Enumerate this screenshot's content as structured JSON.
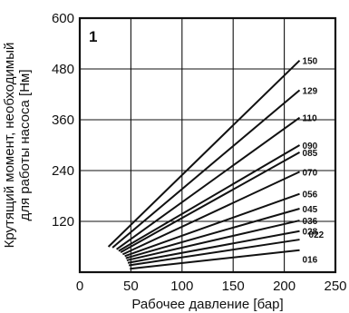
{
  "chart_data": {
    "type": "line",
    "panel_label": "1",
    "xlabel": "Рабочее давление [бар]",
    "ylabel_line1": "Крутящий момент, необходимый",
    "ylabel_line2": "для работы насоса [Нм]",
    "xlim": [
      0,
      250
    ],
    "ylim": [
      0,
      600
    ],
    "x_ticks": [
      0,
      50,
      100,
      150,
      200,
      250
    ],
    "y_ticks": [
      120,
      240,
      360,
      480,
      600
    ],
    "grid": true,
    "series": [
      {
        "name": "150",
        "x": [
          28,
          215
        ],
        "y": [
          60,
          500
        ]
      },
      {
        "name": "129",
        "x": [
          32,
          215
        ],
        "y": [
          58,
          430
        ]
      },
      {
        "name": "110",
        "x": [
          36,
          215
        ],
        "y": [
          54,
          365
        ]
      },
      {
        "name": "090",
        "x": [
          38,
          215
        ],
        "y": [
          50,
          300
        ]
      },
      {
        "name": "085",
        "x": [
          40,
          215
        ],
        "y": [
          47,
          283
        ]
      },
      {
        "name": "070",
        "x": [
          42,
          215
        ],
        "y": [
          42,
          237
        ]
      },
      {
        "name": "056",
        "x": [
          44,
          215
        ],
        "y": [
          38,
          185
        ]
      },
      {
        "name": "045",
        "x": [
          45,
          215
        ],
        "y": [
          33,
          150
        ]
      },
      {
        "name": "036",
        "x": [
          46,
          215
        ],
        "y": [
          28,
          122
        ]
      },
      {
        "name": "028",
        "x": [
          47,
          215
        ],
        "y": [
          22,
          97
        ]
      },
      {
        "name": "022",
        "x": [
          48,
          215
        ],
        "y": [
          16,
          77
        ]
      },
      {
        "name": "016",
        "x": [
          49,
          215
        ],
        "y": [
          8,
          52
        ]
      }
    ]
  }
}
